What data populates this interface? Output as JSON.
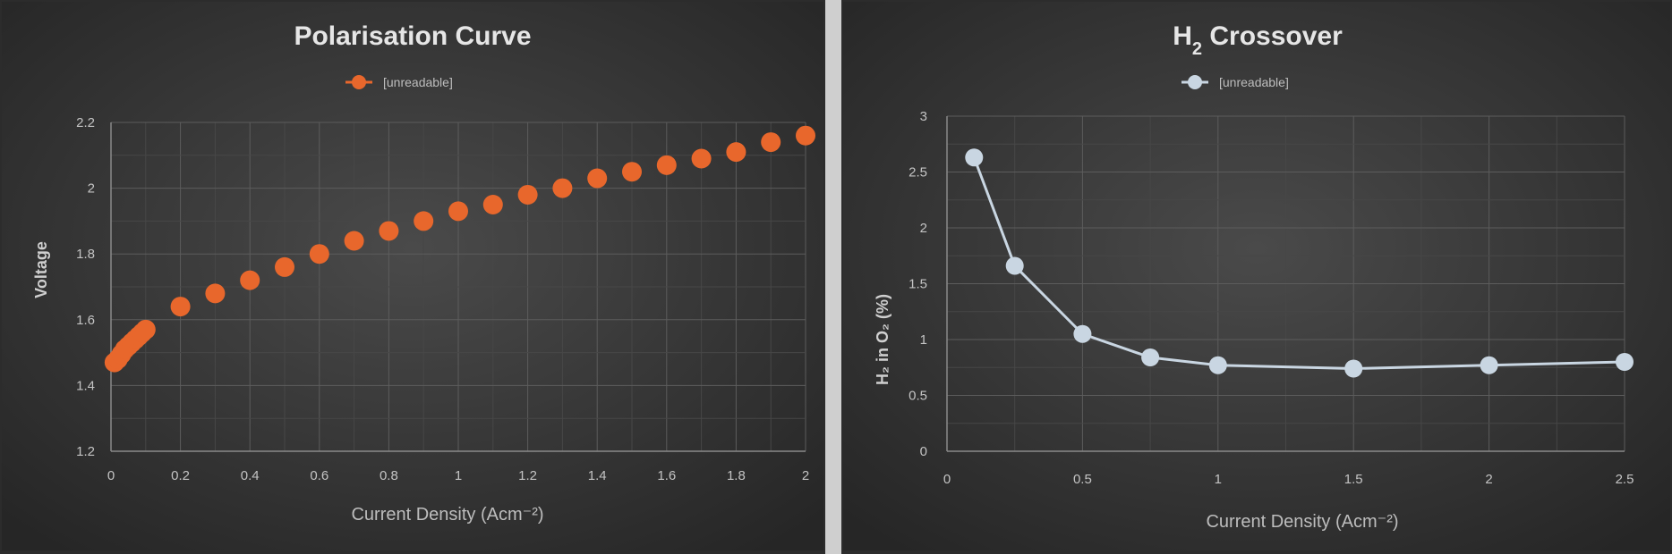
{
  "chart_data": [
    {
      "type": "scatter",
      "title": "Polarisation Curve",
      "xlabel": "Current Density (Acm⁻²)",
      "ylabel": "Voltage",
      "legend": {
        "placement": "top-center",
        "entries": [
          "[unreadable]"
        ]
      },
      "grid": true,
      "xlim": [
        0,
        2
      ],
      "ylim": [
        1.2,
        2.2
      ],
      "x_ticks": [
        "0",
        "0.2",
        "0.4",
        "0.6",
        "0.8",
        "1",
        "1.2",
        "1.4",
        "1.6",
        "1.8",
        "2"
      ],
      "y_ticks": [
        "1.2",
        "1.4",
        "1.6",
        "1.8",
        "2",
        "2.2"
      ],
      "series": [
        {
          "name": "",
          "color": "#e8672c",
          "x": [
            0.01,
            0.02,
            0.03,
            0.04,
            0.05,
            0.06,
            0.07,
            0.08,
            0.09,
            0.1,
            0.2,
            0.3,
            0.4,
            0.5,
            0.6,
            0.7,
            0.8,
            0.9,
            1.0,
            1.1,
            1.2,
            1.3,
            1.4,
            1.5,
            1.6,
            1.7,
            1.8,
            1.9,
            2.0
          ],
          "y": [
            1.47,
            1.48,
            1.495,
            1.51,
            1.52,
            1.53,
            1.54,
            1.55,
            1.56,
            1.57,
            1.64,
            1.68,
            1.72,
            1.76,
            1.8,
            1.84,
            1.87,
            1.9,
            1.93,
            1.95,
            1.98,
            2.0,
            2.03,
            2.05,
            2.07,
            2.09,
            2.11,
            2.14,
            2.16
          ]
        }
      ]
    },
    {
      "type": "line",
      "title_main": "H",
      "title_sub": "2",
      "title_rest": " Crossover",
      "xlabel": "Current Density (Acm⁻²)",
      "ylabel": "H₂ in O₂ (%)",
      "legend": {
        "placement": "top-center",
        "entries": [
          "[unreadable]"
        ]
      },
      "grid": true,
      "xlim": [
        0,
        2.5
      ],
      "ylim": [
        0,
        3
      ],
      "x_ticks": [
        "0",
        "0.5",
        "1",
        "1.5",
        "2",
        "2.5"
      ],
      "y_ticks": [
        "0",
        "0.5",
        "1",
        "1.5",
        "2",
        "2.5",
        "3"
      ],
      "series": [
        {
          "name": "",
          "color": "#c9d6e2",
          "x": [
            0.1,
            0.25,
            0.5,
            0.75,
            1.0,
            1.5,
            2.0,
            2.5
          ],
          "y": [
            2.63,
            1.66,
            1.05,
            0.84,
            0.77,
            0.74,
            0.77,
            0.8
          ]
        }
      ]
    }
  ]
}
